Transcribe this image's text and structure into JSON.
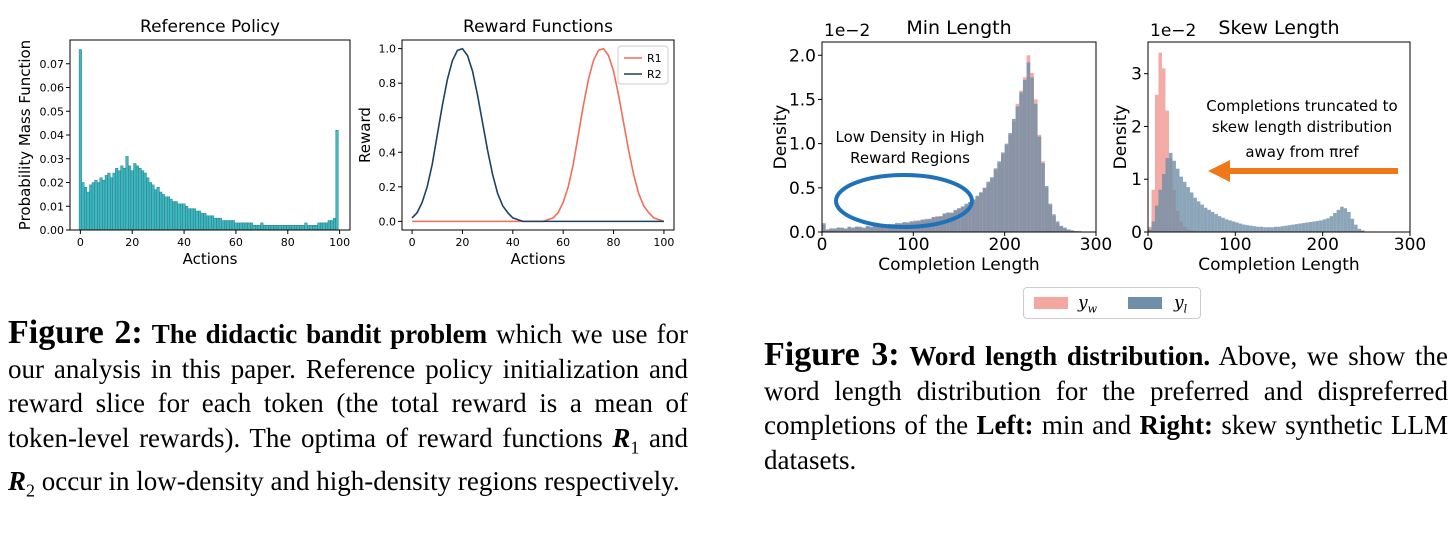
{
  "figure2": {
    "caption": {
      "fig_label": "Figure 2:",
      "bold": "The didactic bandit problem",
      "text1": "which we use for our analysis in this paper. Reference policy initialization and reward slice for each token (the total reward is a mean of token-level rewards). The optima of reward functions",
      "r1": "R",
      "r1_sub": "1",
      "and": "and",
      "r2": "R",
      "r2_sub": "2",
      "text2": "occur in low-density and high-density regions respectively."
    }
  },
  "figure3": {
    "caption": {
      "fig_label": "Figure 3:",
      "bold": "Word length distribution.",
      "text1": "Above, we show the word length distribution for the preferred and dispreferred completions of the",
      "left": "Left:",
      "text2": "min and",
      "right": "Right:",
      "text3": "skew synthetic LLM datasets."
    },
    "legend": [
      {
        "label": "y",
        "sub": "w",
        "color": "#f4a6a0"
      },
      {
        "label": "y",
        "sub": "l",
        "color": "#6f8ea8"
      }
    ]
  },
  "chart_data": [
    {
      "type": "bar",
      "title": "Reference Policy",
      "xlabel": "Actions",
      "ylabel": "Probability Mass Function",
      "xlim": [
        -4,
        104
      ],
      "ylim": [
        0,
        0.08
      ],
      "xticks": [
        "0",
        "20",
        "40",
        "60",
        "80",
        "100"
      ],
      "yticks": [
        "0.00",
        "0.01",
        "0.02",
        "0.03",
        "0.04",
        "0.05",
        "0.06",
        "0.07"
      ],
      "color": "#3fb7c0",
      "values": [
        0.076,
        0.02,
        0.018,
        0.016,
        0.019,
        0.02,
        0.021,
        0.02,
        0.022,
        0.021,
        0.023,
        0.024,
        0.022,
        0.024,
        0.026,
        0.025,
        0.027,
        0.026,
        0.031,
        0.027,
        0.025,
        0.028,
        0.027,
        0.026,
        0.025,
        0.024,
        0.022,
        0.02,
        0.019,
        0.017,
        0.018,
        0.016,
        0.015,
        0.014,
        0.014,
        0.013,
        0.012,
        0.012,
        0.011,
        0.011,
        0.011,
        0.01,
        0.009,
        0.009,
        0.009,
        0.008,
        0.008,
        0.007,
        0.007,
        0.006,
        0.006,
        0.006,
        0.005,
        0.005,
        0.005,
        0.004,
        0.004,
        0.004,
        0.004,
        0.004,
        0.003,
        0.003,
        0.003,
        0.003,
        0.003,
        0.003,
        0.003,
        0.002,
        0.002,
        0.002,
        0.003,
        0.002,
        0.002,
        0.002,
        0.002,
        0.002,
        0.002,
        0.002,
        0.002,
        0.002,
        0.002,
        0.002,
        0.002,
        0.002,
        0.002,
        0.002,
        0.002,
        0.003,
        0.002,
        0.002,
        0.002,
        0.002,
        0.003,
        0.003,
        0.003,
        0.003,
        0.004,
        0.004,
        0.005,
        0.042
      ]
    },
    {
      "type": "line",
      "title": "Reward Functions",
      "xlabel": "Actions",
      "ylabel": "Reward",
      "xlim": [
        -4,
        104
      ],
      "ylim": [
        -0.05,
        1.05
      ],
      "xticks": [
        "0",
        "20",
        "40",
        "60",
        "80",
        "100"
      ],
      "yticks": [
        "0.0",
        "0.2",
        "0.4",
        "0.6",
        "0.8",
        "1.0"
      ],
      "legend_position": "top-right",
      "x": [
        0,
        2,
        4,
        6,
        8,
        10,
        12,
        14,
        16,
        18,
        20,
        22,
        24,
        26,
        28,
        30,
        32,
        34,
        36,
        38,
        40,
        42,
        44,
        46,
        48,
        50,
        52,
        54,
        56,
        58,
        60,
        62,
        64,
        66,
        68,
        70,
        72,
        74,
        76,
        78,
        80,
        82,
        84,
        86,
        88,
        90,
        92,
        94,
        96,
        98,
        100
      ],
      "series": [
        {
          "name": "R1",
          "color": "#ef6f59",
          "values": [
            0,
            0,
            0,
            0,
            0,
            0,
            0,
            0,
            0,
            0,
            0,
            0,
            0,
            0,
            0,
            0,
            0,
            0,
            0,
            0,
            0,
            0,
            0,
            0,
            0,
            0,
            0,
            0.01,
            0.02,
            0.05,
            0.11,
            0.2,
            0.33,
            0.5,
            0.67,
            0.82,
            0.93,
            0.99,
            1.0,
            0.96,
            0.87,
            0.73,
            0.57,
            0.41,
            0.27,
            0.16,
            0.09,
            0.05,
            0.02,
            0.01,
            0
          ]
        },
        {
          "name": "R2",
          "color": "#1d4260",
          "values": [
            0.02,
            0.05,
            0.11,
            0.2,
            0.33,
            0.5,
            0.67,
            0.82,
            0.93,
            0.99,
            1.0,
            0.96,
            0.87,
            0.73,
            0.57,
            0.41,
            0.27,
            0.16,
            0.09,
            0.05,
            0.02,
            0.01,
            0,
            0,
            0,
            0,
            0,
            0,
            0,
            0,
            0,
            0,
            0,
            0,
            0,
            0,
            0,
            0,
            0,
            0,
            0,
            0,
            0,
            0,
            0,
            0,
            0,
            0,
            0,
            0,
            0
          ]
        }
      ]
    },
    {
      "type": "bar",
      "title": "Min Length",
      "xlabel": "Completion Length",
      "ylabel": "Density",
      "scale_label": "1e−2",
      "xlim": [
        0,
        300
      ],
      "ylim": [
        0,
        2.15
      ],
      "xticks": [
        "0",
        "100",
        "200",
        "300"
      ],
      "yticks": [
        "0.0",
        "0.5",
        "1.0",
        "1.5",
        "2.0"
      ],
      "bin_width": 4,
      "annotation": "Low Density in High Reward Regions",
      "series": [
        {
          "name": "y_w",
          "color": "#f4a6a0",
          "values": [
            0.08,
            0.02,
            0.04,
            0.03,
            0.05,
            0.04,
            0.03,
            0.05,
            0.04,
            0.06,
            0.05,
            0.04,
            0.06,
            0.05,
            0.07,
            0.06,
            0.08,
            0.07,
            0.09,
            0.08,
            0.1,
            0.09,
            0.11,
            0.1,
            0.12,
            0.13,
            0.12,
            0.14,
            0.15,
            0.14,
            0.16,
            0.18,
            0.17,
            0.2,
            0.22,
            0.21,
            0.24,
            0.26,
            0.28,
            0.3,
            0.33,
            0.36,
            0.4,
            0.44,
            0.5,
            0.55,
            0.6,
            0.7,
            0.78,
            0.88,
            0.98,
            1.1,
            1.25,
            1.45,
            1.6,
            1.75,
            2.0,
            1.8,
            1.5,
            1.1,
            0.8,
            0.5,
            0.3,
            0.18,
            0.1,
            0.06,
            0.04,
            0.02,
            0.01,
            0.01,
            0,
            0,
            0,
            0,
            0
          ]
        },
        {
          "name": "y_l",
          "color": "#6f8ea8",
          "values": [
            0.1,
            0.03,
            0.04,
            0.04,
            0.05,
            0.05,
            0.04,
            0.06,
            0.05,
            0.06,
            0.06,
            0.05,
            0.07,
            0.06,
            0.07,
            0.07,
            0.08,
            0.08,
            0.09,
            0.09,
            0.1,
            0.1,
            0.11,
            0.11,
            0.12,
            0.12,
            0.13,
            0.14,
            0.14,
            0.15,
            0.17,
            0.17,
            0.18,
            0.21,
            0.22,
            0.22,
            0.25,
            0.27,
            0.29,
            0.32,
            0.34,
            0.37,
            0.41,
            0.45,
            0.5,
            0.57,
            0.62,
            0.72,
            0.8,
            0.9,
            1.0,
            1.12,
            1.28,
            1.42,
            1.58,
            1.72,
            1.92,
            1.75,
            1.45,
            1.08,
            0.78,
            0.52,
            0.32,
            0.2,
            0.12,
            0.07,
            0.05,
            0.03,
            0.02,
            0.01,
            0.01,
            0,
            0,
            0,
            0
          ]
        }
      ]
    },
    {
      "type": "bar",
      "title": "Skew Length",
      "xlabel": "Completion Length",
      "ylabel": "Density",
      "scale_label": "1e−2",
      "xlim": [
        0,
        300
      ],
      "ylim": [
        0,
        3.6
      ],
      "xticks": [
        "0",
        "100",
        "200",
        "300"
      ],
      "yticks": [
        "0",
        "1",
        "2",
        "3"
      ],
      "bin_width": 4,
      "annotation": "Completions truncated to skew length distribution away from πref",
      "series": [
        {
          "name": "y_w",
          "color": "#f4a6a0",
          "values": [
            0.1,
            0.8,
            2.6,
            3.4,
            3.1,
            2.3,
            1.4,
            0.8,
            0.4,
            0.2,
            0.1,
            0.05,
            0.03,
            0.02,
            0.01,
            0.01,
            0.01,
            0,
            0,
            0,
            0,
            0,
            0,
            0,
            0,
            0,
            0,
            0,
            0,
            0,
            0,
            0,
            0,
            0,
            0,
            0,
            0,
            0,
            0,
            0,
            0,
            0,
            0,
            0,
            0,
            0,
            0,
            0,
            0,
            0,
            0,
            0,
            0,
            0,
            0,
            0,
            0,
            0,
            0,
            0,
            0,
            0,
            0,
            0,
            0,
            0,
            0,
            0,
            0,
            0,
            0,
            0,
            0,
            0,
            0
          ]
        },
        {
          "name": "y_l",
          "color": "#6f8ea8",
          "values": [
            0.05,
            0.2,
            0.5,
            0.8,
            1.1,
            1.4,
            1.5,
            1.35,
            1.2,
            1.05,
            0.95,
            0.85,
            0.75,
            0.65,
            0.58,
            0.52,
            0.46,
            0.42,
            0.38,
            0.34,
            0.3,
            0.27,
            0.24,
            0.22,
            0.2,
            0.18,
            0.16,
            0.14,
            0.13,
            0.12,
            0.11,
            0.1,
            0.1,
            0.09,
            0.09,
            0.09,
            0.1,
            0.1,
            0.11,
            0.12,
            0.13,
            0.14,
            0.15,
            0.16,
            0.17,
            0.18,
            0.19,
            0.2,
            0.21,
            0.22,
            0.24,
            0.26,
            0.3,
            0.36,
            0.42,
            0.48,
            0.45,
            0.38,
            0.25,
            0.14,
            0.06,
            0.03,
            0.01,
            0.01,
            0,
            0,
            0,
            0,
            0,
            0,
            0,
            0,
            0,
            0,
            0
          ]
        }
      ]
    }
  ]
}
